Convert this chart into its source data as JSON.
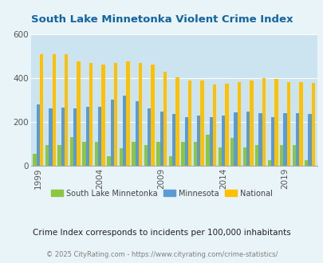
{
  "title": "South Lake Minnetonka Violent Crime Index",
  "years": [
    1999,
    2000,
    2001,
    2002,
    2003,
    2004,
    2005,
    2006,
    2007,
    2008,
    2009,
    2010,
    2011,
    2012,
    2013,
    2014,
    2015,
    2016,
    2017,
    2018,
    2019,
    2020,
    2021
  ],
  "south_lake": [
    55,
    95,
    95,
    130,
    108,
    108,
    42,
    78,
    108,
    95,
    108,
    45,
    108,
    108,
    140,
    83,
    128,
    83,
    95,
    25,
    95,
    95,
    25
  ],
  "minnesota": [
    280,
    263,
    265,
    262,
    270,
    270,
    300,
    320,
    293,
    263,
    247,
    235,
    220,
    230,
    223,
    228,
    245,
    247,
    240,
    220,
    238,
    238,
    235
  ],
  "national": [
    510,
    510,
    510,
    475,
    468,
    460,
    470,
    475,
    470,
    460,
    430,
    405,
    390,
    388,
    370,
    375,
    383,
    388,
    398,
    397,
    383,
    383,
    378
  ],
  "slm_color": "#8dc63f",
  "mn_color": "#5b9bd5",
  "nat_color": "#ffc000",
  "bg_color": "#e8f4f8",
  "plot_bg": "#cce4ef",
  "title_color": "#1464a0",
  "legend_label_color": "#444444",
  "subtitle_color": "#222222",
  "footer_color": "#7f7f7f",
  "subtitle": "Crime Index corresponds to incidents per 100,000 inhabitants",
  "footer": "© 2025 CityRating.com - https://www.cityrating.com/crime-statistics/",
  "ylim": [
    0,
    600
  ],
  "yticks": [
    0,
    200,
    400,
    600
  ],
  "bar_width": 0.28,
  "tick_label_years": [
    1999,
    2004,
    2009,
    2014,
    2019
  ]
}
